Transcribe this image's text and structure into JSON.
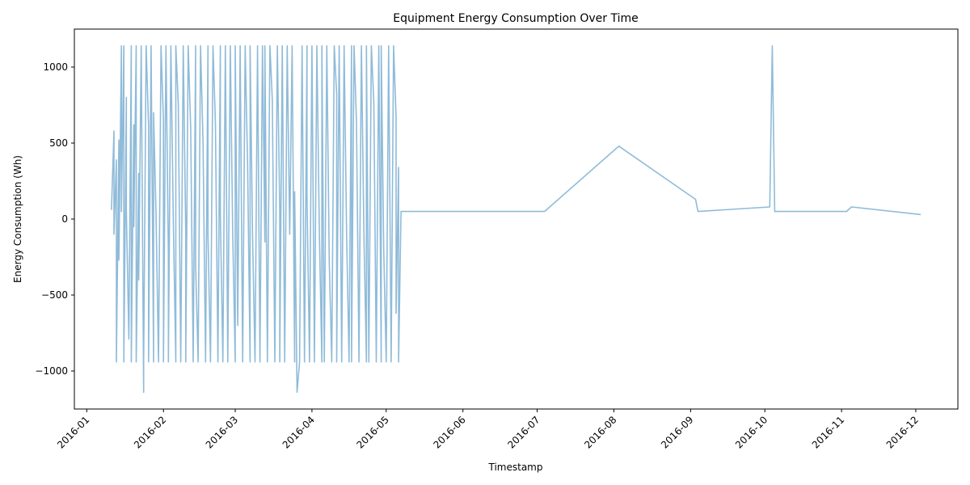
{
  "chart_data": {
    "type": "line",
    "title": "Equipment Energy Consumption Over Time",
    "xlabel": "Timestamp",
    "ylabel": "Energy Consumption (Wh)",
    "xlim": [
      "2015-12-27",
      "2016-12-18"
    ],
    "ylim": [
      -1250,
      1250
    ],
    "x_ticks": [
      "2016-01",
      "2016-02",
      "2016-03",
      "2016-04",
      "2016-05",
      "2016-06",
      "2016-07",
      "2016-08",
      "2016-09",
      "2016-10",
      "2016-11",
      "2016-12"
    ],
    "y_ticks": [
      -1000,
      -500,
      0,
      500,
      1000
    ],
    "y_tick_labels": [
      "−1000",
      "−500",
      "0",
      "500",
      "1000"
    ],
    "grid": false,
    "series": [
      {
        "color": "#8fbbd9",
        "x": [
          "2016-01-11",
          "2016-01-12",
          "2016-01-12",
          "2016-01-13",
          "2016-01-13",
          "2016-01-14",
          "2016-01-14",
          "2016-01-15",
          "2016-01-15",
          "2016-01-16",
          "2016-01-16",
          "2016-01-17",
          "2016-01-17",
          "2016-01-18",
          "2016-01-19",
          "2016-01-19",
          "2016-01-20",
          "2016-01-20",
          "2016-01-21",
          "2016-01-21",
          "2016-01-22",
          "2016-01-22",
          "2016-01-23",
          "2016-01-24",
          "2016-01-24",
          "2016-01-25",
          "2016-01-26",
          "2016-01-26",
          "2016-01-27",
          "2016-01-28",
          "2016-01-28",
          "2016-01-29",
          "2016-01-30",
          "2016-01-31",
          "2016-02-01",
          "2016-02-01",
          "2016-02-02",
          "2016-02-03",
          "2016-02-03",
          "2016-02-04",
          "2016-02-05",
          "2016-02-06",
          "2016-02-06",
          "2016-02-07",
          "2016-02-08",
          "2016-02-09",
          "2016-02-10",
          "2016-02-10",
          "2016-02-11",
          "2016-02-12",
          "2016-02-13",
          "2016-02-14",
          "2016-02-14",
          "2016-02-15",
          "2016-02-16",
          "2016-02-17",
          "2016-02-18",
          "2016-02-19",
          "2016-02-19",
          "2016-02-20",
          "2016-02-21",
          "2016-02-22",
          "2016-02-23",
          "2016-02-24",
          "2016-02-24",
          "2016-02-25",
          "2016-02-26",
          "2016-02-27",
          "2016-02-28",
          "2016-02-29",
          "2016-03-01",
          "2016-03-01",
          "2016-03-02",
          "2016-03-03",
          "2016-03-04",
          "2016-03-05",
          "2016-03-06",
          "2016-03-07",
          "2016-03-07",
          "2016-03-08",
          "2016-03-09",
          "2016-03-10",
          "2016-03-11",
          "2016-03-12",
          "2016-03-13",
          "2016-03-13",
          "2016-03-14",
          "2016-03-15",
          "2016-03-16",
          "2016-03-17",
          "2016-03-18",
          "2016-03-19",
          "2016-03-19",
          "2016-03-20",
          "2016-03-21",
          "2016-03-22",
          "2016-03-23",
          "2016-03-24",
          "2016-03-25",
          "2016-03-25",
          "2016-03-26",
          "2016-03-27",
          "2016-03-28",
          "2016-03-29",
          "2016-03-30",
          "2016-03-30",
          "2016-03-31",
          "2016-04-01",
          "2016-04-02",
          "2016-04-03",
          "2016-04-04",
          "2016-04-05",
          "2016-04-05",
          "2016-04-06",
          "2016-04-07",
          "2016-04-08",
          "2016-04-09",
          "2016-04-10",
          "2016-04-11",
          "2016-04-11",
          "2016-04-12",
          "2016-04-13",
          "2016-04-14",
          "2016-04-15",
          "2016-04-16",
          "2016-04-17",
          "2016-04-17",
          "2016-04-18",
          "2016-04-19",
          "2016-04-20",
          "2016-04-21",
          "2016-04-22",
          "2016-04-23",
          "2016-04-23",
          "2016-04-24",
          "2016-04-25",
          "2016-04-26",
          "2016-04-27",
          "2016-04-28",
          "2016-04-29",
          "2016-04-29",
          "2016-04-30",
          "2016-05-01",
          "2016-05-02",
          "2016-05-03",
          "2016-05-04",
          "2016-05-05",
          "2016-05-05",
          "2016-05-06",
          "2016-05-06",
          "2016-05-07",
          "2016-07-04",
          "2016-08-03",
          "2016-09-03",
          "2016-09-04",
          "2016-10-03",
          "2016-10-04",
          "2016-10-05",
          "2016-11-03",
          "2016-11-05",
          "2016-12-03"
        ],
        "y": [
          60,
          580,
          -100,
          390,
          -940,
          520,
          -270,
          1140,
          50,
          1140,
          -940,
          800,
          60,
          -790,
          1140,
          -940,
          620,
          -50,
          1140,
          -940,
          300,
          -400,
          1140,
          -1140,
          -940,
          1140,
          610,
          -940,
          1140,
          -940,
          700,
          40,
          -940,
          1140,
          650,
          -940,
          1140,
          -230,
          -940,
          1140,
          -40,
          -940,
          1140,
          750,
          -940,
          1140,
          -100,
          -940,
          1140,
          600,
          -940,
          1140,
          -300,
          -940,
          1140,
          500,
          -940,
          1140,
          -100,
          -940,
          1140,
          630,
          -940,
          1140,
          40,
          -940,
          1140,
          -940,
          1140,
          -100,
          -940,
          1140,
          -700,
          1140,
          -940,
          1140,
          360,
          -940,
          1140,
          -100,
          -940,
          1140,
          -940,
          1140,
          -150,
          1140,
          -940,
          1140,
          780,
          -940,
          1140,
          50,
          -940,
          1140,
          -940,
          1140,
          -100,
          1140,
          -940,
          180,
          -1140,
          -940,
          1140,
          -940,
          1140,
          150,
          -940,
          1140,
          -940,
          1140,
          -100,
          -940,
          1140,
          -940,
          1140,
          -270,
          -940,
          1140,
          820,
          -940,
          1140,
          -940,
          1140,
          -100,
          -940,
          1140,
          -940,
          1140,
          640,
          -940,
          1140,
          -100,
          -940,
          1140,
          -940,
          1140,
          760,
          -940,
          1140,
          -940,
          1140,
          -200,
          -940,
          1140,
          -940,
          1140,
          670,
          -620,
          340,
          -940,
          50,
          50,
          480,
          130,
          50,
          80,
          1140,
          50,
          50,
          80,
          30
        ]
      }
    ]
  }
}
